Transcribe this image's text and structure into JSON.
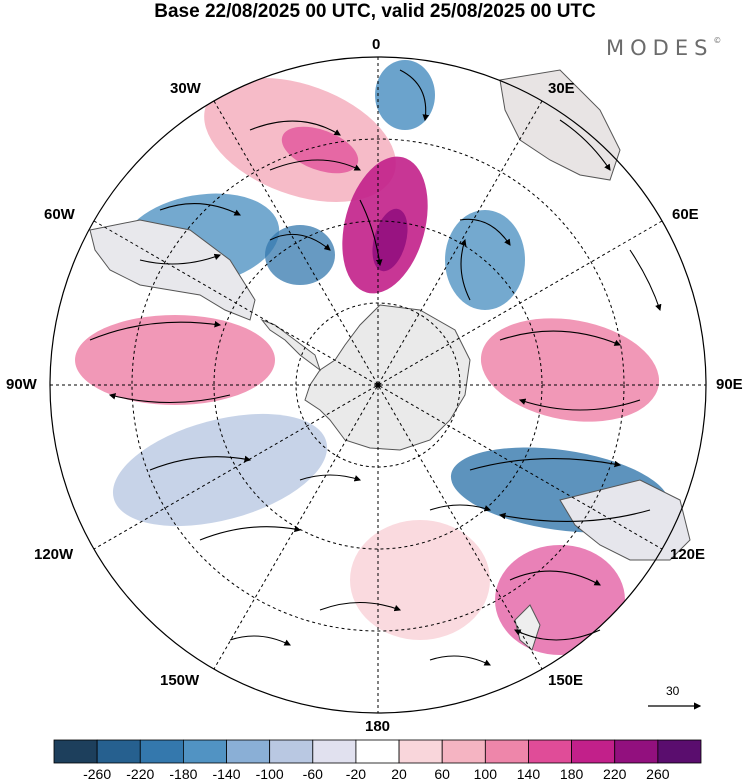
{
  "title": "Base 22/08/2025 00 UTC, valid 25/08/2025 00 UTC",
  "brand": "MODES",
  "brand_mark": "©",
  "projection": "south-polar-stereographic",
  "longitude_labels": {
    "lon_0": "0",
    "lon_30e": "30E",
    "lon_60e": "60E",
    "lon_90e": "90E",
    "lon_120e": "120E",
    "lon_150e": "150E",
    "lon_180": "180",
    "lon_150w": "150W",
    "lon_120w": "120W",
    "lon_90w": "90W",
    "lon_60w": "60W",
    "lon_30w": "30W"
  },
  "reference_vector": {
    "label": "30"
  },
  "colorbar": {
    "colors": [
      "#1d3f5c",
      "#26608f",
      "#3478ad",
      "#5193c3",
      "#8aafd6",
      "#b9c8e2",
      "#e1e1ef",
      "#ffffff",
      "#f9d6db",
      "#f5b4c2",
      "#ee86aa",
      "#e04c98",
      "#c2208a",
      "#92107e",
      "#5a0d6e"
    ],
    "tick_labels": [
      "-260",
      "-220",
      "-180",
      "-140",
      "-100",
      "-60",
      "-20",
      "20",
      "60",
      "100",
      "140",
      "180",
      "220",
      "260"
    ]
  },
  "anomaly_blobs": [
    {
      "name": "blob-pink-upper-left",
      "color": "#f5b4c2",
      "opacity": 0.9
    },
    {
      "name": "blob-magenta-upper-left",
      "color": "#e04c98",
      "opacity": 0.75
    },
    {
      "name": "blob-purple-center-top",
      "color": "#c2208a",
      "opacity": 0.9
    },
    {
      "name": "blob-purple-core",
      "color": "#92107e",
      "opacity": 0.9
    },
    {
      "name": "blob-blue-top",
      "color": "#5193c3",
      "opacity": 0.85
    },
    {
      "name": "blob-blue-left",
      "color": "#5193c3",
      "opacity": 0.8
    },
    {
      "name": "blob-blue-center-left",
      "color": "#3478ad",
      "opacity": 0.75
    },
    {
      "name": "blob-blue-right-top",
      "color": "#5193c3",
      "opacity": 0.8
    },
    {
      "name": "blob-pink-left",
      "color": "#ee86aa",
      "opacity": 0.85
    },
    {
      "name": "blob-pink-right",
      "color": "#ee86aa",
      "opacity": 0.85
    },
    {
      "name": "blob-blue-right",
      "color": "#3478ad",
      "opacity": 0.8
    },
    {
      "name": "blob-pink-lower-right",
      "color": "#e04c98",
      "opacity": 0.7
    },
    {
      "name": "blob-lightblue-lower-left",
      "color": "#b9c8e2",
      "opacity": 0.8
    },
    {
      "name": "blob-lightpink-bottom",
      "color": "#f9d6db",
      "opacity": 0.9
    }
  ]
}
